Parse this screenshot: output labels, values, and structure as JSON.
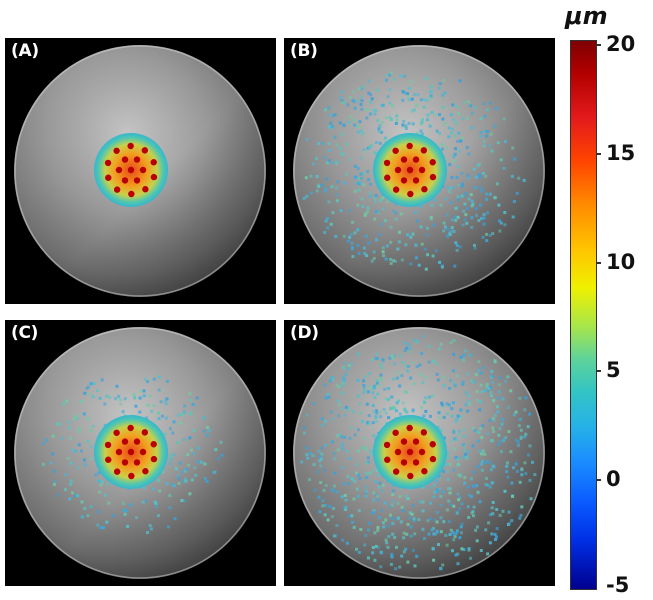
{
  "panels": [
    {
      "id": "a",
      "label": "(A)",
      "spread": 0.0
    },
    {
      "id": "b",
      "label": "(B)",
      "spread": 0.55
    },
    {
      "id": "c",
      "label": "(C)",
      "spread": 0.25
    },
    {
      "id": "d",
      "label": "(D)",
      "spread": 1.0
    }
  ],
  "colorbar": {
    "unit": "μm",
    "ticks": [
      "20",
      "15",
      "10",
      "5",
      "0",
      "-5"
    ],
    "range": [
      -5,
      20
    ]
  }
}
